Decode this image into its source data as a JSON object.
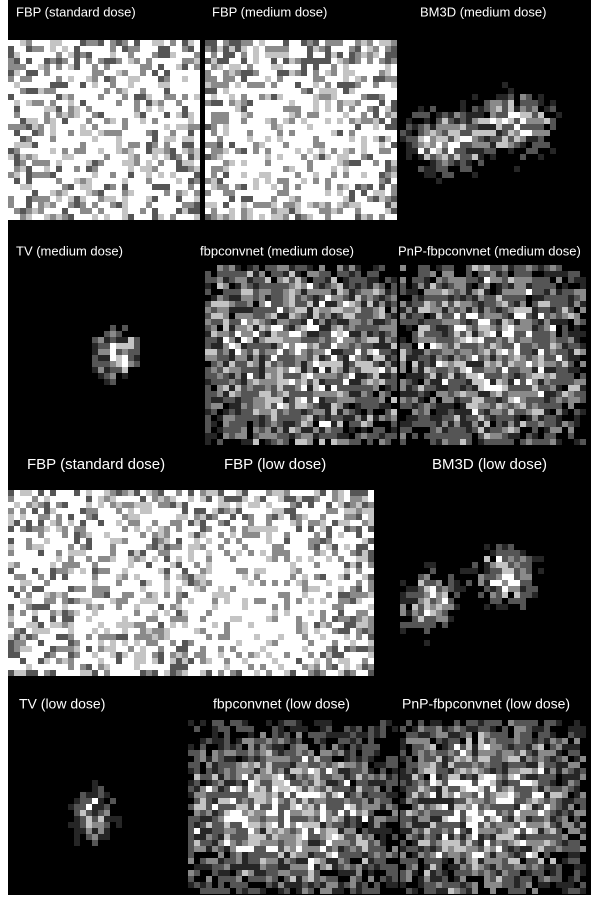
{
  "panels": [
    {
      "label": "FBP (standard dose)"
    },
    {
      "label": "FBP (medium dose)"
    },
    {
      "label": "BM3D (medium dose)"
    },
    {
      "label": "TV (medium dose)"
    },
    {
      "label": "fbpconvnet (medium dose)"
    },
    {
      "label": "PnP-fbpconvnet (medium dose)"
    },
    {
      "label": "FBP (standard dose)"
    },
    {
      "label": "FBP (low dose)"
    },
    {
      "label": "BM3D (low dose)"
    },
    {
      "label": "TV (low dose)"
    },
    {
      "label": "fbpconvnet (low dose)"
    },
    {
      "label": "PnP-fbpconvnet (low dose)"
    }
  ]
}
